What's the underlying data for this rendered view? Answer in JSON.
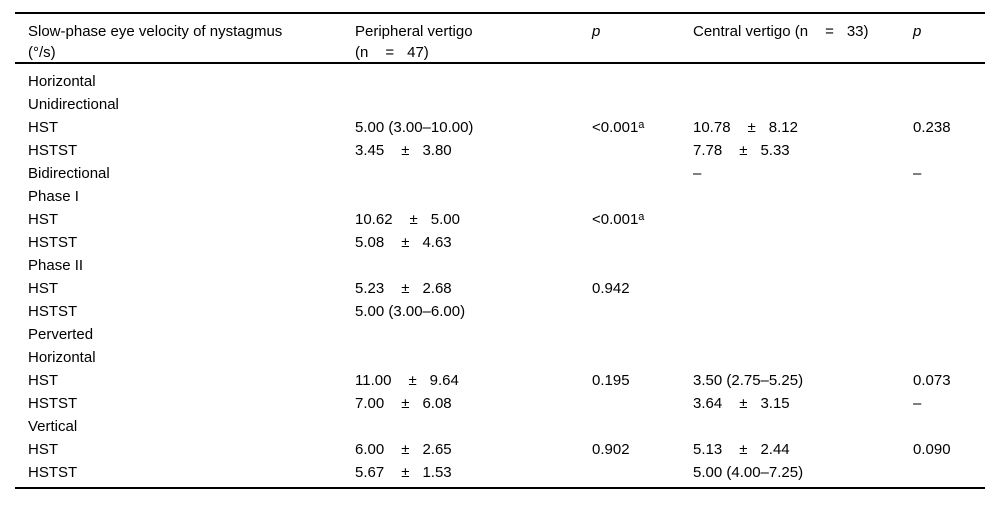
{
  "table": {
    "colors": {
      "background": "#ffffff",
      "text": "#000000",
      "rule": "#000000"
    },
    "headers": [
      {
        "lines": [
          "Slow-phase eye velocity of nystagmus",
          "(°/s)"
        ],
        "italic": false
      },
      {
        "lines": [
          "Peripheral vertigo",
          "(n = 47)"
        ],
        "italic": false
      },
      {
        "lines": [
          "p"
        ],
        "italic": true
      },
      {
        "lines": [
          "Central vertigo (n = 33)"
        ],
        "italic": false
      },
      {
        "lines": [
          "p"
        ],
        "italic": true
      }
    ],
    "rows": [
      {
        "label": "Horizontal",
        "cells": [
          "",
          "",
          "",
          ""
        ]
      },
      {
        "label": "Unidirectional",
        "cells": [
          "",
          "",
          "",
          ""
        ]
      },
      {
        "label": "HST",
        "cells": [
          "5.00 (3.00–10.00)",
          "<0.001^a",
          "10.78 ± 8.12",
          "0.238"
        ]
      },
      {
        "label": "HSTST",
        "cells": [
          "3.45 ± 3.80",
          "",
          "7.78 ± 5.33",
          ""
        ]
      },
      {
        "label": "Bidirectional",
        "cells": [
          "",
          "",
          "–",
          "–"
        ]
      },
      {
        "label": "Phase I",
        "cells": [
          "",
          "",
          "",
          ""
        ]
      },
      {
        "label": "HST",
        "cells": [
          "10.62 ± 5.00",
          "<0.001^a",
          "",
          ""
        ]
      },
      {
        "label": "HSTST",
        "cells": [
          "5.08 ± 4.63",
          "",
          "",
          ""
        ]
      },
      {
        "label": "Phase II",
        "cells": [
          "",
          "",
          "",
          ""
        ]
      },
      {
        "label": "HST",
        "cells": [
          "5.23 ± 2.68",
          "0.942",
          "",
          ""
        ]
      },
      {
        "label": "HSTST",
        "cells": [
          "5.00 (3.00–6.00)",
          "",
          "",
          ""
        ]
      },
      {
        "label": "Perverted",
        "cells": [
          "",
          "",
          "",
          ""
        ]
      },
      {
        "label": "Horizontal",
        "cells": [
          "",
          "",
          "",
          ""
        ]
      },
      {
        "label": "HST",
        "cells": [
          "11.00 ± 9.64",
          "0.195",
          "3.50 (2.75–5.25)",
          "0.073"
        ]
      },
      {
        "label": "HSTST",
        "cells": [
          "7.00 ± 6.08",
          "",
          "3.64 ± 3.15",
          "–"
        ]
      },
      {
        "label": "Vertical",
        "cells": [
          "",
          "",
          "",
          ""
        ]
      },
      {
        "label": "HST",
        "cells": [
          "6.00 ± 2.65",
          "0.902",
          "5.13 ± 2.44",
          "0.090"
        ]
      },
      {
        "label": "HSTST",
        "cells": [
          "5.67 ± 1.53",
          "",
          "5.00 (4.00–7.25)",
          ""
        ]
      }
    ]
  }
}
